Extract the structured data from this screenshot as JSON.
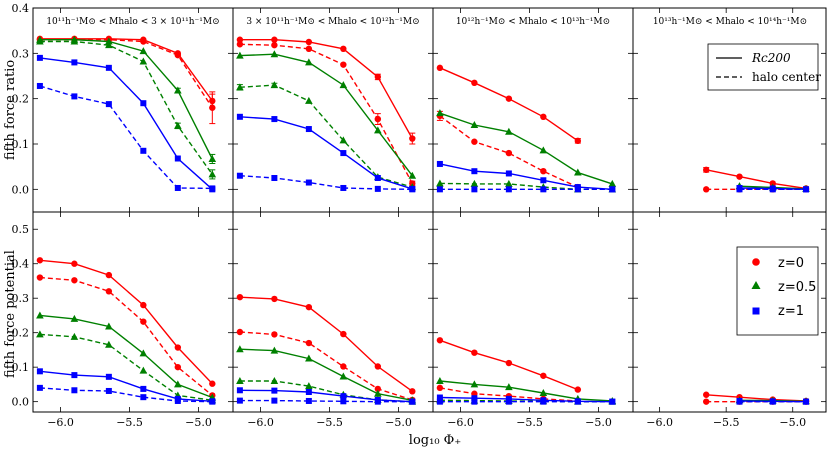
{
  "figure": {
    "xlabel": "log₁₀ Φ₊",
    "row_ylabels": [
      "fifth force ratio",
      "fifth force potential"
    ],
    "panel_titles": [
      "10¹¹h⁻¹M⊙ < Mhalo < 3 × 10¹¹h⁻¹M⊙",
      "3 × 10¹¹h⁻¹M⊙ < Mhalo < 10¹²h⁻¹M⊙",
      "10¹²h⁻¹M⊙ < Mhalo < 10¹³h⁻¹M⊙",
      "10¹³h⁻¹M⊙ < Mhalo < 10¹⁴h⁻¹M⊙"
    ],
    "xticks": [
      -6.0,
      -5.5,
      -5.0
    ],
    "xtick_labels": [
      "−6.0",
      "−5.5",
      "−5.0"
    ],
    "xlim": [
      -6.2,
      -4.75
    ],
    "top_row": {
      "ylim": [
        -0.05,
        0.4
      ],
      "yticks": [
        0.0,
        0.1,
        0.2,
        0.3,
        0.4
      ],
      "ytick_labels": [
        "0.0",
        "0.1",
        "0.2",
        "0.3",
        "0.4"
      ]
    },
    "bottom_row": {
      "ylim": [
        -0.03,
        0.55
      ],
      "yticks": [
        0.0,
        0.1,
        0.2,
        0.3,
        0.4,
        0.5
      ],
      "ytick_labels": [
        "0.0",
        "0.1",
        "0.2",
        "0.3",
        "0.4",
        "0.5"
      ]
    },
    "legend_linestyle": [
      {
        "label": "Rc200",
        "style": "solid"
      },
      {
        "label": "halo center",
        "style": "dashed"
      }
    ],
    "legend_redshift": [
      {
        "label": "z=0",
        "marker": "circle",
        "color": "#ff0000"
      },
      {
        "label": "z=0.5",
        "marker": "triangle",
        "color": "#008000"
      },
      {
        "label": "z=1",
        "marker": "square",
        "color": "#0000ff"
      }
    ],
    "colors": {
      "z0": "#ff0000",
      "z05": "#008000",
      "z1": "#0000ff"
    }
  },
  "chart_data": [
    {
      "type": "line",
      "panel": 1,
      "title": "10^11 < Mhalo < 3x10^11",
      "ylabel": "fifth force ratio",
      "ylim": [
        -0.05,
        0.4
      ],
      "x": [
        -6.15,
        -5.9,
        -5.65,
        -5.4,
        -5.15,
        -4.9
      ],
      "series": [
        {
          "name": "z=0 Rc200",
          "values": [
            0.332,
            0.332,
            0.332,
            0.33,
            0.3,
            0.195
          ],
          "errors": [
            0,
            0,
            0,
            0,
            0,
            0.015
          ]
        },
        {
          "name": "z=0 halo center",
          "values": [
            0.33,
            0.33,
            0.33,
            0.326,
            0.296,
            0.18
          ],
          "errors": [
            0,
            0,
            0,
            0,
            0,
            0.035
          ]
        },
        {
          "name": "z=0.5 Rc200",
          "values": [
            0.33,
            0.33,
            0.326,
            0.305,
            0.218,
            0.067
          ],
          "errors": [
            0,
            0,
            0,
            0,
            0.005,
            0.01
          ]
        },
        {
          "name": "z=0.5 halo center",
          "values": [
            0.326,
            0.326,
            0.318,
            0.282,
            0.14,
            0.033
          ],
          "errors": [
            0,
            0,
            0,
            0,
            0.006,
            0.01
          ]
        },
        {
          "name": "z=1 Rc200",
          "values": [
            0.29,
            0.28,
            0.268,
            0.19,
            0.068,
            0.0
          ]
        },
        {
          "name": "z=1 halo center",
          "values": [
            0.228,
            0.205,
            0.188,
            0.085,
            0.003,
            0.002
          ]
        }
      ]
    },
    {
      "type": "line",
      "panel": 2,
      "title": "3x10^11 < Mhalo < 10^12",
      "ylabel": "fifth force ratio",
      "ylim": [
        -0.05,
        0.4
      ],
      "x": [
        -6.15,
        -5.9,
        -5.65,
        -5.4,
        -5.15,
        -4.9
      ],
      "series": [
        {
          "name": "z=0 Rc200",
          "values": [
            0.33,
            0.33,
            0.325,
            0.31,
            0.248,
            0.112
          ],
          "errors": [
            0,
            0,
            0,
            0,
            0.006,
            0.012
          ]
        },
        {
          "name": "z=0 halo center",
          "values": [
            0.32,
            0.318,
            0.31,
            0.275,
            0.155,
            0.013
          ],
          "errors": [
            0,
            0,
            0,
            0,
            0.012,
            0.005
          ]
        },
        {
          "name": "z=0.5 Rc200",
          "values": [
            0.295,
            0.298,
            0.28,
            0.23,
            0.13,
            0.03
          ]
        },
        {
          "name": "z=0.5 halo center",
          "values": [
            0.225,
            0.23,
            0.195,
            0.108,
            0.027,
            0.005
          ],
          "errors": [
            0.006,
            0.004,
            0,
            0,
            0,
            0
          ]
        },
        {
          "name": "z=1 Rc200",
          "values": [
            0.16,
            0.155,
            0.133,
            0.08,
            0.025,
            0.001
          ]
        },
        {
          "name": "z=1 halo center",
          "values": [
            0.03,
            0.025,
            0.015,
            0.003,
            0.001,
            0.0
          ]
        }
      ]
    },
    {
      "type": "line",
      "panel": 3,
      "title": "10^12 < Mhalo < 10^13",
      "ylabel": "fifth force ratio",
      "ylim": [
        -0.05,
        0.4
      ],
      "x": [
        -6.15,
        -5.9,
        -5.65,
        -5.4,
        -5.15,
        -4.9
      ],
      "series": [
        {
          "name": "z=0 Rc200",
          "values": [
            0.268,
            0.235,
            0.2,
            0.16,
            0.107,
            null
          ],
          "errors": [
            0,
            0,
            0,
            0,
            0.005,
            0
          ]
        },
        {
          "name": "z=0 halo center",
          "values": [
            0.162,
            0.105,
            0.08,
            0.04,
            0.005,
            null
          ],
          "errors": [
            0.01,
            0,
            0,
            0,
            0,
            0
          ]
        },
        {
          "name": "z=0.5 Rc200",
          "values": [
            0.168,
            0.142,
            0.127,
            0.086,
            0.037,
            0.012
          ]
        },
        {
          "name": "z=0.5 halo center",
          "values": [
            0.013,
            0.012,
            0.012,
            0.005,
            0.0,
            0.0
          ]
        },
        {
          "name": "z=1 Rc200",
          "values": [
            0.056,
            0.04,
            0.035,
            0.02,
            0.005,
            0.0
          ]
        },
        {
          "name": "z=1 halo center",
          "values": [
            0.0,
            0.0,
            0.0,
            0.0,
            0.0,
            0.0
          ]
        }
      ]
    },
    {
      "type": "line",
      "panel": 4,
      "title": "10^13 < Mhalo < 10^14",
      "ylabel": "fifth force ratio",
      "ylim": [
        -0.05,
        0.4
      ],
      "x": [
        -5.65,
        -5.4,
        -5.15,
        -4.9
      ],
      "series": [
        {
          "name": "z=0 Rc200",
          "values": [
            0.043,
            0.028,
            0.013,
            0.002
          ],
          "errors": [
            0.005,
            0,
            0,
            0
          ]
        },
        {
          "name": "z=0 halo center",
          "values": [
            0.0,
            0.0,
            0.0,
            0.0
          ]
        },
        {
          "name": "z=0.5 Rc200",
          "values": [
            null,
            0.007,
            0.004,
            0.001
          ]
        },
        {
          "name": "z=1 Rc200",
          "values": [
            null,
            0.003,
            0.002,
            0.0
          ]
        },
        {
          "name": "z=1 halo center",
          "values": [
            null,
            0.0,
            0.0,
            0.0
          ]
        }
      ]
    },
    {
      "type": "line",
      "panel": 5,
      "ylabel": "fifth force potential",
      "ylim": [
        -0.03,
        0.55
      ],
      "x": [
        -6.15,
        -5.9,
        -5.65,
        -5.4,
        -5.15,
        -4.9
      ],
      "series": [
        {
          "name": "z=0 Rc200",
          "values": [
            0.41,
            0.4,
            0.367,
            0.28,
            0.157,
            0.052
          ]
        },
        {
          "name": "z=0 halo center",
          "values": [
            0.36,
            0.352,
            0.32,
            0.232,
            0.1,
            0.018
          ]
        },
        {
          "name": "z=0.5 Rc200",
          "values": [
            0.25,
            0.24,
            0.218,
            0.14,
            0.05,
            0.012
          ]
        },
        {
          "name": "z=0.5 halo center",
          "values": [
            0.195,
            0.188,
            0.165,
            0.09,
            0.018,
            0.004
          ]
        },
        {
          "name": "z=1 Rc200",
          "values": [
            0.088,
            0.077,
            0.072,
            0.037,
            0.008,
            0.001
          ]
        },
        {
          "name": "z=1 halo center",
          "values": [
            0.04,
            0.033,
            0.031,
            0.013,
            0.002,
            0.0
          ]
        }
      ]
    },
    {
      "type": "line",
      "panel": 6,
      "ylabel": "fifth force potential",
      "ylim": [
        -0.03,
        0.55
      ],
      "x": [
        -6.15,
        -5.9,
        -5.65,
        -5.4,
        -5.15,
        -4.9
      ],
      "series": [
        {
          "name": "z=0 Rc200",
          "values": [
            0.303,
            0.298,
            0.274,
            0.196,
            0.102,
            0.03
          ]
        },
        {
          "name": "z=0 halo center",
          "values": [
            0.202,
            0.195,
            0.17,
            0.102,
            0.037,
            0.005
          ]
        },
        {
          "name": "z=0.5 Rc200",
          "values": [
            0.152,
            0.148,
            0.125,
            0.073,
            0.023,
            0.004
          ]
        },
        {
          "name": "z=0.5 halo center",
          "values": [
            0.06,
            0.06,
            0.045,
            0.02,
            0.005,
            0.0
          ]
        },
        {
          "name": "z=1 Rc200",
          "values": [
            0.033,
            0.032,
            0.028,
            0.016,
            0.005,
            0.0
          ]
        },
        {
          "name": "z=1 halo center",
          "values": [
            0.003,
            0.003,
            0.002,
            0.001,
            0.0,
            0.0
          ]
        }
      ]
    },
    {
      "type": "line",
      "panel": 7,
      "ylabel": "fifth force potential",
      "ylim": [
        -0.03,
        0.55
      ],
      "x": [
        -6.15,
        -5.9,
        -5.65,
        -5.4,
        -5.15,
        -4.9
      ],
      "series": [
        {
          "name": "z=0 Rc200",
          "values": [
            0.178,
            0.142,
            0.112,
            0.075,
            0.035,
            null
          ]
        },
        {
          "name": "z=0 halo center",
          "values": [
            0.04,
            0.023,
            0.016,
            0.008,
            0.002,
            null
          ]
        },
        {
          "name": "z=0.5 Rc200",
          "values": [
            0.06,
            0.05,
            0.042,
            0.025,
            0.008,
            0.002
          ]
        },
        {
          "name": "z=0.5 halo center",
          "values": [
            0.004,
            0.003,
            0.002,
            0.001,
            0.0,
            0.0
          ]
        },
        {
          "name": "z=1 Rc200",
          "values": [
            0.012,
            0.01,
            0.008,
            0.004,
            0.001,
            0.0
          ]
        },
        {
          "name": "z=1 halo center",
          "values": [
            0.0,
            0.0,
            0.0,
            0.0,
            0.0,
            0.0
          ]
        }
      ]
    },
    {
      "type": "line",
      "panel": 8,
      "ylabel": "fifth force potential",
      "ylim": [
        -0.03,
        0.55
      ],
      "x": [
        -5.65,
        -5.4,
        -5.15,
        -4.9
      ],
      "series": [
        {
          "name": "z=0 Rc200",
          "values": [
            0.02,
            0.013,
            0.006,
            0.002
          ]
        },
        {
          "name": "z=0 halo center",
          "values": [
            0.0,
            0.0,
            0.0,
            0.0
          ]
        },
        {
          "name": "z=0.5 Rc200",
          "values": [
            null,
            0.004,
            0.003,
            0.001
          ]
        },
        {
          "name": "z=1 Rc200",
          "values": [
            null,
            0.002,
            0.001,
            0.0
          ]
        },
        {
          "name": "z=1 halo center",
          "values": [
            null,
            0.0,
            0.0,
            0.0
          ]
        }
      ]
    }
  ]
}
